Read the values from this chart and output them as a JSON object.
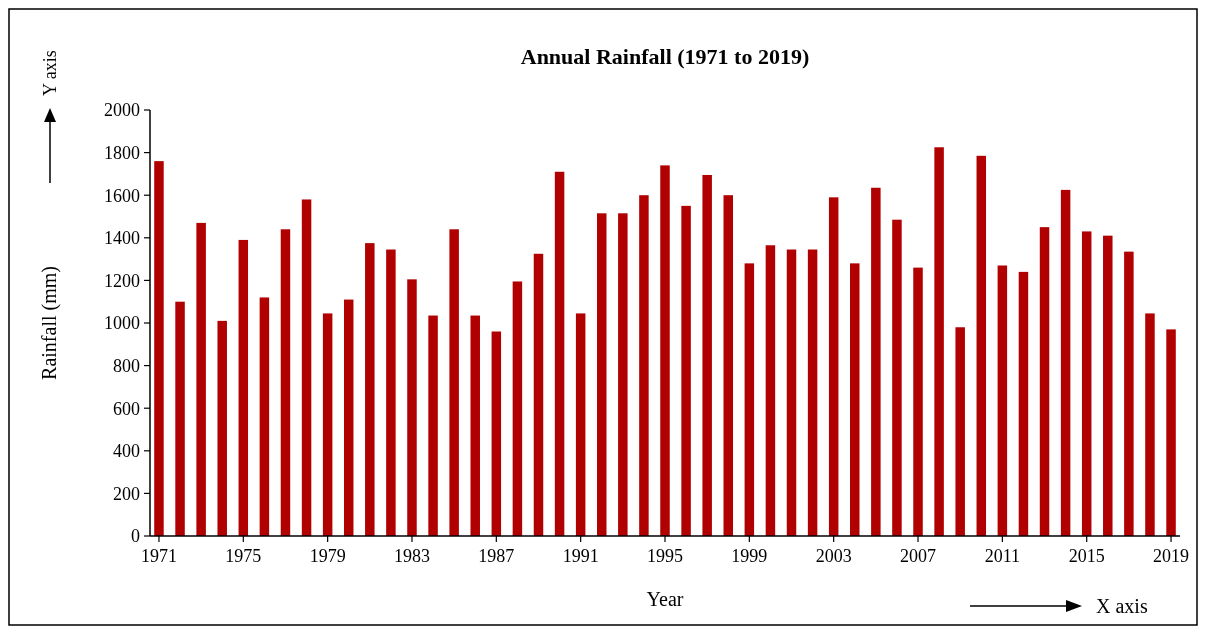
{
  "chart_data": {
    "type": "bar",
    "title": "Annual Rainfall (1971 to 2019)",
    "xlabel": "Year",
    "ylabel": "Rainfall (mm)",
    "annotations": [
      "Y axis",
      "X axis"
    ],
    "categories": [
      "1971",
      null,
      null,
      null,
      "1975",
      null,
      null,
      null,
      "1979",
      null,
      null,
      null,
      "1983",
      null,
      null,
      null,
      "1987",
      null,
      null,
      null,
      "1991",
      null,
      null,
      null,
      "1995",
      null,
      null,
      null,
      "1999",
      null,
      null,
      null,
      "2003",
      null,
      null,
      null,
      "2007",
      null,
      null,
      null,
      "2011",
      null,
      null,
      null,
      "2015",
      null,
      null,
      null,
      "2019"
    ],
    "values": [
      1760,
      1100,
      1470,
      1010,
      1390,
      1120,
      1440,
      1580,
      1045,
      1110,
      1375,
      1345,
      1205,
      1035,
      1440,
      1035,
      960,
      1195,
      1325,
      1710,
      1045,
      1515,
      1515,
      1600,
      1740,
      1550,
      1695,
      1600,
      1280,
      1365,
      1345,
      1345,
      1590,
      1280,
      1635,
      1485,
      1260,
      1825,
      980,
      1785,
      1270,
      1240,
      1450,
      1625,
      1430,
      1410,
      1335,
      1045,
      970
    ],
    "color": "#b00000",
    "ylim": [
      0,
      2000
    ],
    "yticks": [
      0,
      200,
      400,
      600,
      800,
      1000,
      1200,
      1400,
      1600,
      1800,
      2000
    ]
  }
}
